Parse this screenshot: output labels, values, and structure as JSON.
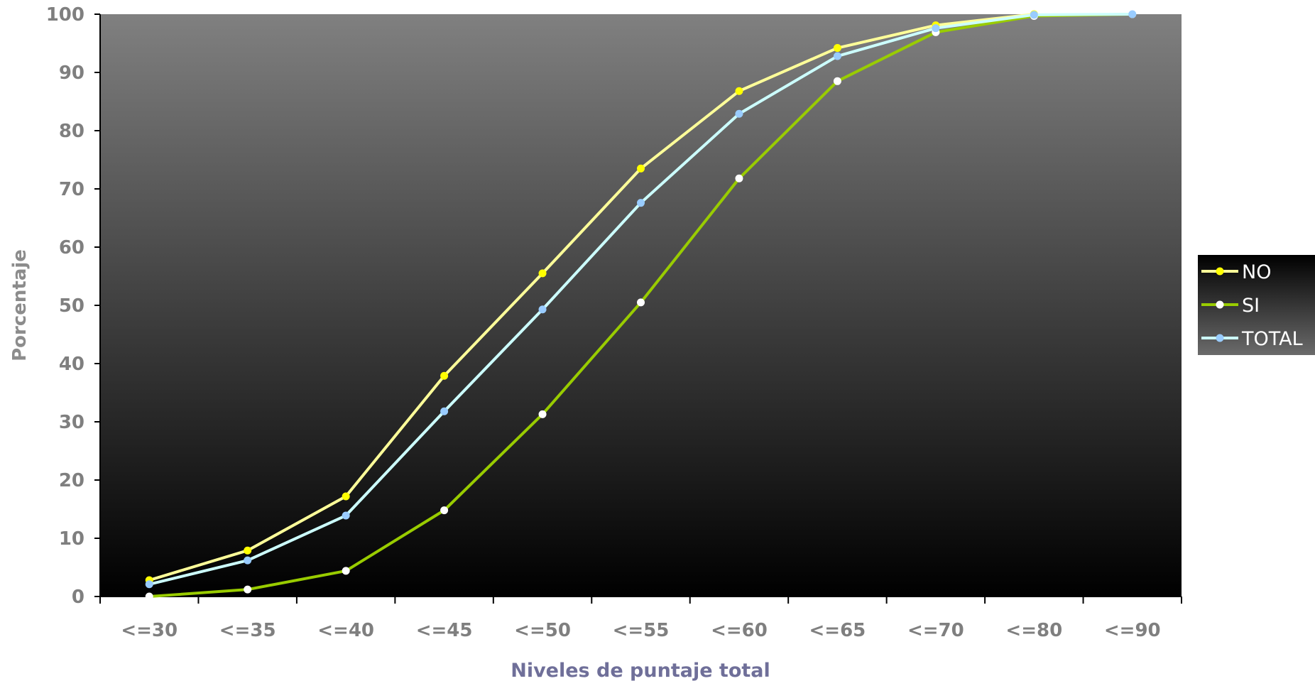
{
  "chart_data": {
    "type": "line",
    "xlabel": "Niveles de puntaje total",
    "ylabel": "Porcentaje",
    "ylim": [
      0,
      100
    ],
    "yticks": [
      0,
      10,
      20,
      30,
      40,
      50,
      60,
      70,
      80,
      90,
      100
    ],
    "categories": [
      "<=30",
      "<=35",
      "<=40",
      "<=45",
      "<=50",
      "<=55",
      "<=60",
      "<=65",
      "<=70",
      "<=80",
      "<=90"
    ],
    "grid": false,
    "legend_position": "right",
    "plot_background": "dark gradient (grey to black)",
    "series": [
      {
        "name": "NO",
        "color": "#ffff99",
        "marker_color": "#ffff00",
        "values": [
          2.8,
          7.9,
          17.2,
          37.9,
          55.5,
          73.5,
          86.8,
          94.2,
          98.1,
          100,
          null
        ]
      },
      {
        "name": "SI",
        "color": "#99cc00",
        "marker_color": "#ffffff",
        "values": [
          0,
          1.2,
          4.4,
          14.8,
          31.3,
          50.5,
          71.8,
          88.5,
          96.9,
          99.7,
          100
        ]
      },
      {
        "name": "TOTAL",
        "color": "#ccffff",
        "marker_color": "#99ccff",
        "values": [
          2.1,
          6.2,
          13.9,
          31.8,
          49.3,
          67.6,
          82.9,
          92.8,
          97.6,
          99.9,
          100
        ]
      }
    ]
  }
}
